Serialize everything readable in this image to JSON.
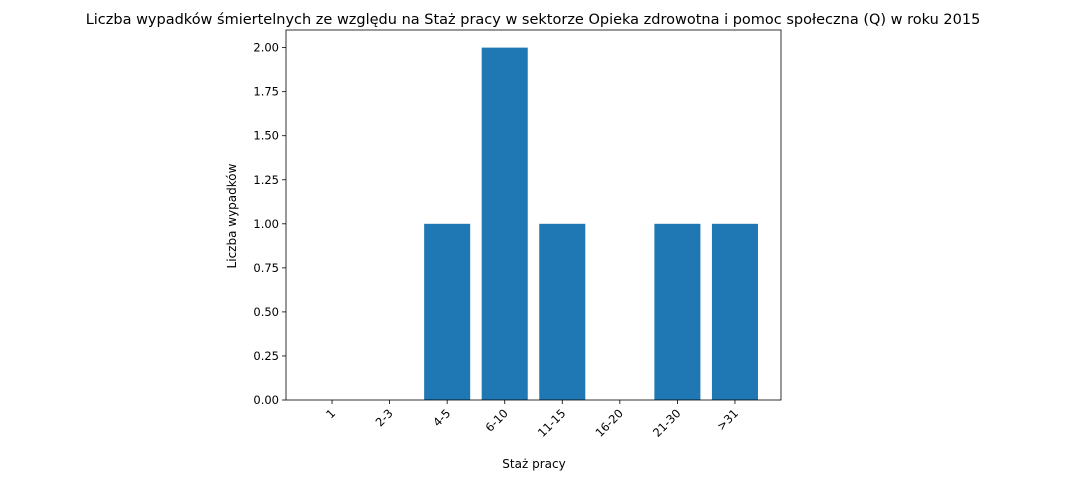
{
  "chart_data": {
    "type": "bar",
    "title": "Liczba wypadków śmiertelnych ze względu na Staż pracy w sektorze Opieka zdrowotna i pomoc społeczna  (Q)   w roku 2015",
    "xlabel": "Staż pracy",
    "ylabel": "Liczba wypadków",
    "categories": [
      "1",
      "2-3",
      "4-5",
      "6-10",
      "11-15",
      "16-20",
      "21-30",
      ">31"
    ],
    "values": [
      0,
      0,
      1,
      2,
      1,
      0,
      1,
      1
    ],
    "ylim": [
      0,
      2.1
    ],
    "yticks": [
      "0.00",
      "0.25",
      "0.50",
      "0.75",
      "1.00",
      "1.25",
      "1.50",
      "1.75",
      "2.00"
    ],
    "grid": false,
    "colors": {
      "bar": "#1f77b4",
      "axis": "#000000"
    }
  }
}
